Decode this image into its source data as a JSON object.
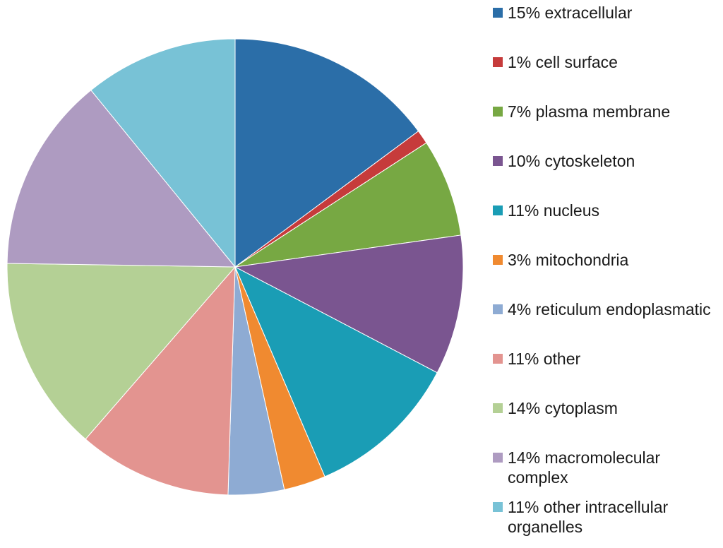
{
  "chart_data": {
    "type": "pie",
    "categories": [
      "extracellular",
      "cell surface",
      "plasma membrane",
      "cytoskeleton",
      "nucleus",
      "mitochondria",
      "reticulum endoplasmatic",
      "other",
      "cytoplasm",
      "macromolecular complex",
      "other intracellular organelles"
    ],
    "values": [
      15,
      1,
      7,
      10,
      11,
      3,
      4,
      11,
      14,
      14,
      11
    ],
    "value_labels": [
      "15%",
      "1%",
      "7%",
      "10%",
      "11%",
      "3%",
      "4%",
      "11%",
      "14%",
      "14%",
      "11%"
    ],
    "colors": [
      "#2b6ea8",
      "#c63b3b",
      "#77a843",
      "#7a5590",
      "#1a9db5",
      "#f08a30",
      "#8eabd3",
      "#e39490",
      "#b4d095",
      "#ae9bc1",
      "#78c2d6"
    ],
    "legend": "right"
  }
}
